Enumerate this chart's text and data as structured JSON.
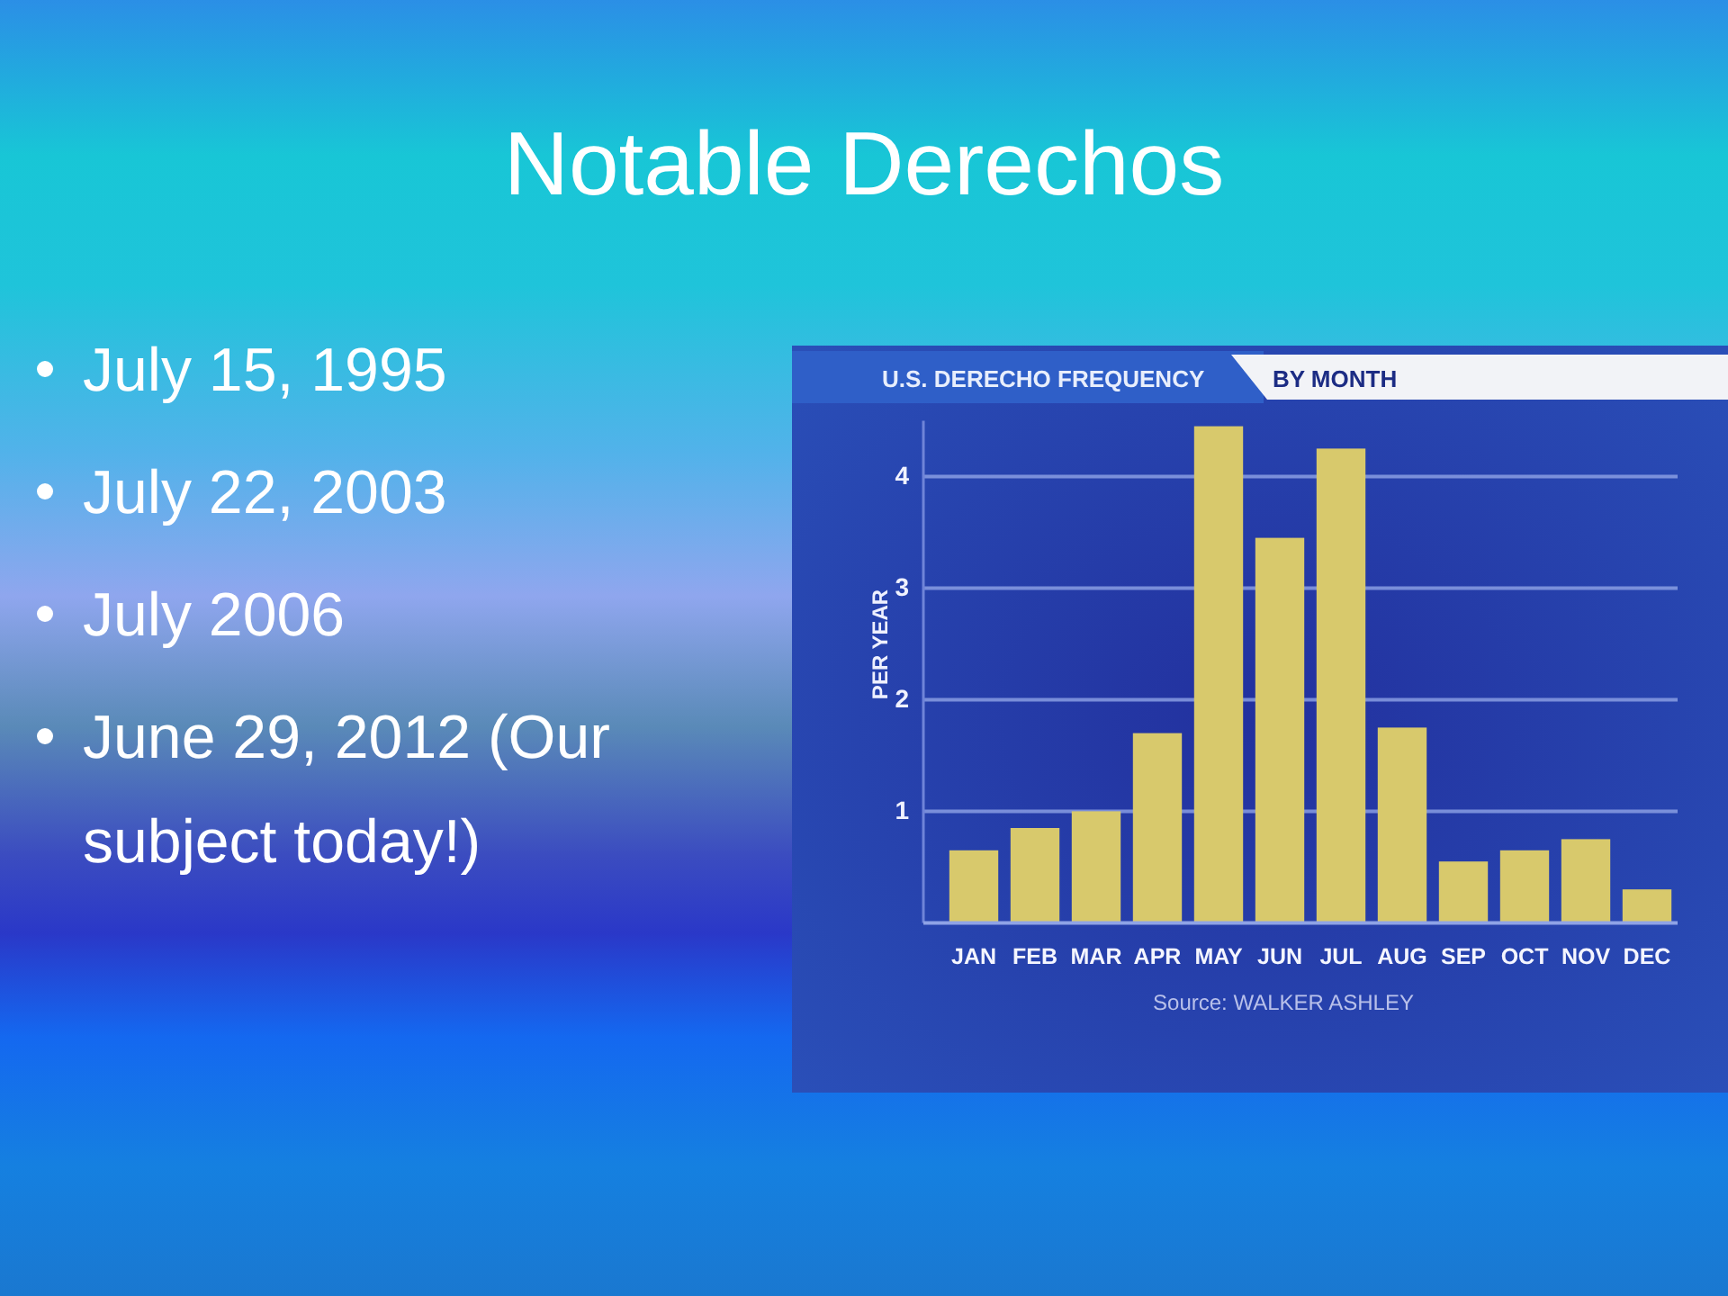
{
  "chart_data": [
    {
      "type": "other",
      "title": "Notable Derechos",
      "annotations": [
        "July 15, 1995",
        "July 22, 2003",
        "July 2006",
        "June 29, 2012 (Our subject today!)"
      ]
    },
    {
      "type": "bar",
      "title": "U.S. DERECHO FREQUENCY",
      "subtitle": "BY MONTH",
      "ylabel": "PER YEAR",
      "categories": [
        "JAN",
        "FEB",
        "MAR",
        "APR",
        "MAY",
        "JUN",
        "JUL",
        "AUG",
        "SEP",
        "OCT",
        "NOV",
        "DEC"
      ],
      "values": [
        0.65,
        0.85,
        1.0,
        1.7,
        4.45,
        3.45,
        4.25,
        1.75,
        0.55,
        0.65,
        0.75,
        0.3
      ],
      "color": "#d8c96c",
      "ylim": [
        0,
        4.5
      ],
      "yticks": [
        1,
        2,
        3,
        4
      ],
      "grid": "y",
      "annotations": [
        "Source: WALKER ASHLEY"
      ]
    }
  ]
}
